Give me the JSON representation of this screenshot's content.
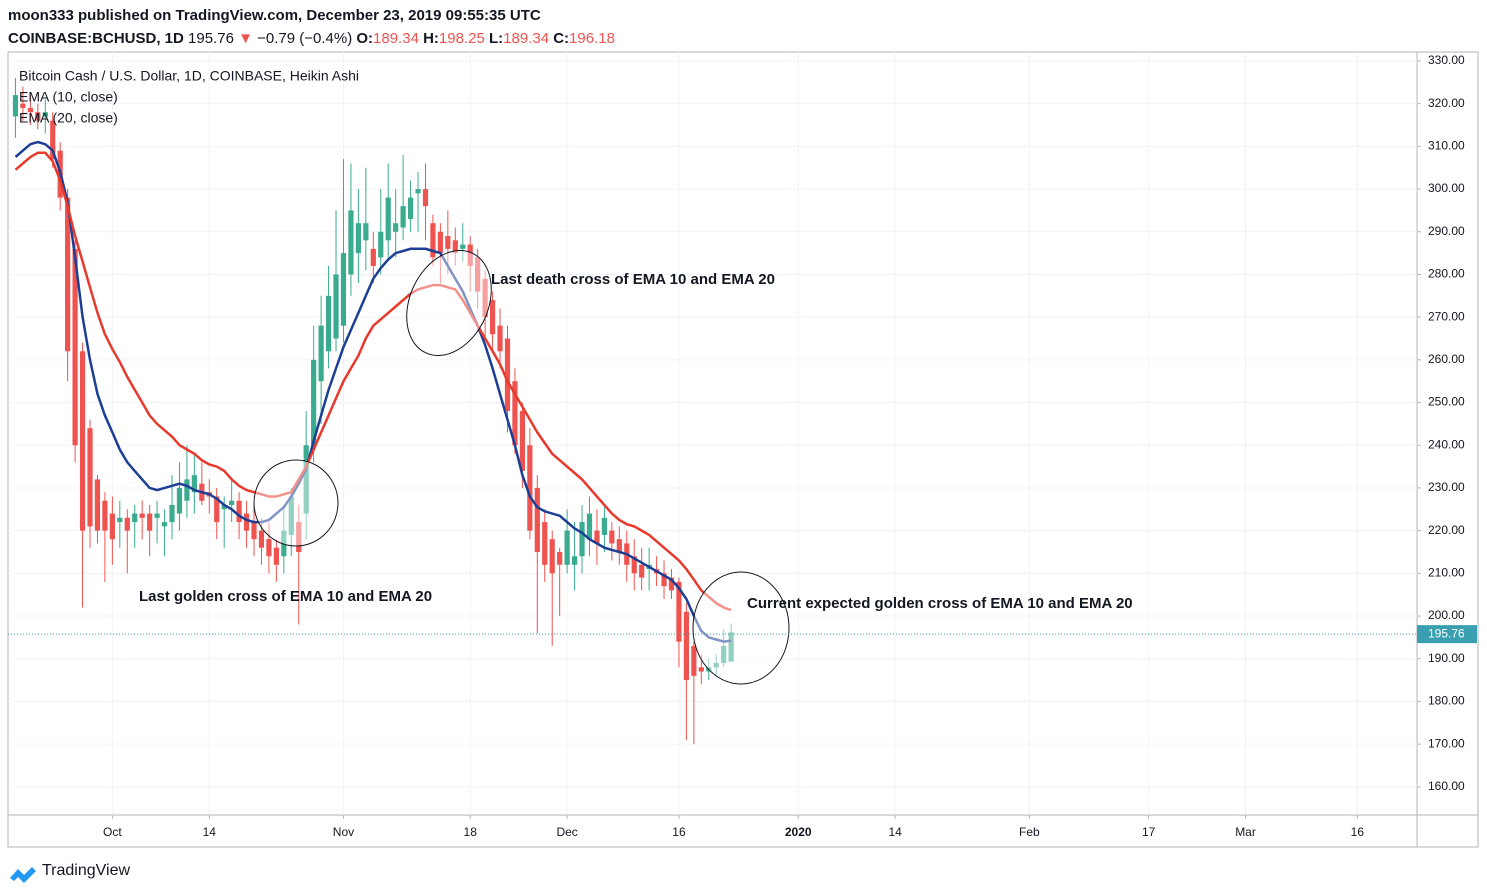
{
  "header": {
    "published": "moon333 published on TradingView.com, December 23, 2019 09:55:35 UTC",
    "symbol": "COINBASE:BCHUSD, 1D",
    "price": 195.76,
    "arrow": "▼",
    "change": "−0.79 (−0.4%)",
    "ohlc_labels": [
      "O:",
      "H:",
      "L:",
      "C:"
    ]
  },
  "footer": {
    "brand": "TradingView"
  },
  "chart_data": {
    "type": "candlestick",
    "title": "Bitcoin Cash / U.S. Dollar, 1D, COINBASE, Heikin Ashi",
    "up_color": "#3aab8f",
    "down_color": "#ef5350",
    "x": [
      "2019-09-18",
      "2019-09-19",
      "2019-09-20",
      "2019-09-21",
      "2019-09-22",
      "2019-09-23",
      "2019-09-24",
      "2019-09-25",
      "2019-09-26",
      "2019-09-27",
      "2019-09-28",
      "2019-09-29",
      "2019-09-30",
      "2019-10-01",
      "2019-10-02",
      "2019-10-03",
      "2019-10-04",
      "2019-10-05",
      "2019-10-06",
      "2019-10-07",
      "2019-10-08",
      "2019-10-09",
      "2019-10-10",
      "2019-10-11",
      "2019-10-12",
      "2019-10-13",
      "2019-10-14",
      "2019-10-15",
      "2019-10-16",
      "2019-10-17",
      "2019-10-18",
      "2019-10-19",
      "2019-10-20",
      "2019-10-21",
      "2019-10-22",
      "2019-10-23",
      "2019-10-24",
      "2019-10-25",
      "2019-10-26",
      "2019-10-27",
      "2019-10-28",
      "2019-10-29",
      "2019-10-30",
      "2019-10-31",
      "2019-11-01",
      "2019-11-02",
      "2019-11-03",
      "2019-11-04",
      "2019-11-05",
      "2019-11-06",
      "2019-11-07",
      "2019-11-08",
      "2019-11-09",
      "2019-11-10",
      "2019-11-11",
      "2019-11-12",
      "2019-11-13",
      "2019-11-14",
      "2019-11-15",
      "2019-11-16",
      "2019-11-17",
      "2019-11-18",
      "2019-11-19",
      "2019-11-20",
      "2019-11-21",
      "2019-11-22",
      "2019-11-23",
      "2019-11-24",
      "2019-11-25",
      "2019-11-26",
      "2019-11-27",
      "2019-11-28",
      "2019-11-29",
      "2019-11-30",
      "2019-12-01",
      "2019-12-02",
      "2019-12-03",
      "2019-12-04",
      "2019-12-05",
      "2019-12-06",
      "2019-12-07",
      "2019-12-08",
      "2019-12-09",
      "2019-12-10",
      "2019-12-11",
      "2019-12-12",
      "2019-12-13",
      "2019-12-14",
      "2019-12-15",
      "2019-12-16",
      "2019-12-17",
      "2019-12-18",
      "2019-12-19",
      "2019-12-20",
      "2019-12-21",
      "2019-12-22",
      "2019-12-23"
    ],
    "ohlc": [
      [
        317,
        326,
        312,
        322
      ],
      [
        320,
        324,
        316,
        319
      ],
      [
        319,
        322,
        315,
        318
      ],
      [
        318,
        320,
        314,
        316
      ],
      [
        317,
        321,
        313,
        318
      ],
      [
        316,
        318,
        305,
        307
      ],
      [
        309,
        311,
        295,
        298
      ],
      [
        298,
        300,
        255,
        262
      ],
      [
        286,
        288,
        236,
        240
      ],
      [
        262,
        264,
        202,
        220
      ],
      [
        244,
        246,
        216,
        221
      ],
      [
        232,
        233,
        217,
        220
      ],
      [
        227,
        229,
        208,
        220
      ],
      [
        224,
        228,
        212,
        218
      ],
      [
        222,
        227,
        216,
        223
      ],
      [
        223,
        225,
        210,
        220
      ],
      [
        222,
        226,
        216,
        224
      ],
      [
        224,
        227,
        218,
        223
      ],
      [
        224,
        226,
        214,
        220
      ],
      [
        223,
        227,
        217,
        224
      ],
      [
        221,
        225,
        214,
        222
      ],
      [
        222,
        233,
        218,
        226
      ],
      [
        224,
        236,
        220,
        230
      ],
      [
        227,
        240,
        223,
        232
      ],
      [
        229,
        238,
        224,
        233
      ],
      [
        231,
        236,
        226,
        227
      ],
      [
        229,
        232,
        224,
        228
      ],
      [
        228,
        230,
        218,
        222
      ],
      [
        225,
        228,
        216,
        226
      ],
      [
        226,
        232,
        222,
        227
      ],
      [
        227,
        229,
        218,
        222
      ],
      [
        224,
        227,
        216,
        220
      ],
      [
        222,
        226,
        214,
        218
      ],
      [
        220,
        223,
        212,
        216
      ],
      [
        218,
        222,
        210,
        214
      ],
      [
        216,
        218,
        208,
        212
      ],
      [
        214,
        226,
        210,
        220
      ],
      [
        219,
        230,
        214,
        228
      ],
      [
        222,
        226,
        198,
        215
      ],
      [
        224,
        248,
        218,
        240
      ],
      [
        240,
        268,
        236,
        260
      ],
      [
        255,
        275,
        245,
        268
      ],
      [
        262,
        282,
        258,
        275
      ],
      [
        265,
        295,
        262,
        280
      ],
      [
        268,
        307,
        264,
        285
      ],
      [
        280,
        306,
        275,
        295
      ],
      [
        285,
        300,
        278,
        292
      ],
      [
        288,
        305,
        281,
        292
      ],
      [
        286,
        290,
        278,
        282
      ],
      [
        284,
        300,
        280,
        290
      ],
      [
        288,
        306,
        284,
        298
      ],
      [
        290,
        300,
        284,
        292
      ],
      [
        291,
        308,
        288,
        296
      ],
      [
        293,
        302,
        290,
        298
      ],
      [
        299,
        304,
        290,
        300
      ],
      [
        300,
        306,
        288,
        296
      ],
      [
        292,
        294,
        282,
        284
      ],
      [
        290,
        292,
        278,
        285
      ],
      [
        289,
        295,
        280,
        286
      ],
      [
        288,
        291,
        282,
        285
      ],
      [
        286,
        292,
        283,
        287
      ],
      [
        287,
        289,
        276,
        282
      ],
      [
        284,
        286,
        272,
        276
      ],
      [
        279,
        281,
        265,
        270
      ],
      [
        274,
        276,
        262,
        266
      ],
      [
        268,
        272,
        258,
        262
      ],
      [
        265,
        268,
        243,
        248
      ],
      [
        255,
        258,
        238,
        240
      ],
      [
        248,
        250,
        230,
        234
      ],
      [
        240,
        244,
        218,
        220
      ],
      [
        230,
        233,
        196,
        215
      ],
      [
        222,
        225,
        208,
        212
      ],
      [
        218,
        220,
        193,
        210
      ],
      [
        215,
        216,
        200,
        212
      ],
      [
        212,
        225,
        210,
        220
      ],
      [
        212,
        222,
        206,
        214
      ],
      [
        214,
        226,
        210,
        222
      ],
      [
        218,
        228,
        214,
        224
      ],
      [
        220,
        225,
        212,
        217
      ],
      [
        219,
        226,
        215,
        223
      ],
      [
        220,
        222,
        213,
        217
      ],
      [
        218,
        221,
        212,
        215
      ],
      [
        217,
        220,
        208,
        212
      ],
      [
        214,
        218,
        206,
        210
      ],
      [
        212,
        216,
        206,
        209
      ],
      [
        211,
        216,
        206,
        212
      ],
      [
        211,
        214,
        207,
        210
      ],
      [
        210,
        213,
        204,
        207
      ],
      [
        209,
        211,
        204,
        206
      ],
      [
        208,
        209,
        188,
        194
      ],
      [
        201,
        203,
        171,
        185
      ],
      [
        193,
        194,
        170,
        186
      ],
      [
        188,
        191,
        184,
        187
      ],
      [
        187,
        190,
        185,
        188
      ],
      [
        188,
        191,
        186,
        189
      ],
      [
        189,
        197,
        188,
        193
      ],
      [
        189.34,
        198.25,
        189.34,
        196.18
      ]
    ],
    "series": [
      {
        "name": "EMA (10, close)",
        "color": "#1c3f95",
        "values": [
          307.5,
          309,
          310.5,
          311,
          310.5,
          309,
          304,
          297,
          284,
          270,
          260,
          252,
          247,
          243,
          239,
          236,
          234,
          232,
          230,
          229.5,
          230,
          230.5,
          231,
          230.5,
          229.5,
          229,
          228.5,
          227.5,
          226,
          225,
          223.5,
          222.5,
          222,
          222,
          222.5,
          224,
          225.5,
          228,
          231,
          234.5,
          241,
          247,
          253,
          258,
          263,
          267,
          271,
          275,
          279,
          281.5,
          283.5,
          285,
          285.5,
          286,
          286,
          286,
          285.5,
          285,
          282,
          279,
          276,
          272,
          268,
          263.5,
          258,
          252,
          246,
          240,
          233,
          228,
          225.5,
          224.5,
          224,
          223.5,
          222,
          220.5,
          219.5,
          218,
          217,
          216,
          215.5,
          215,
          214.5,
          213.5,
          212.5,
          211.5,
          210.5,
          209.5,
          208.5,
          206.5,
          204,
          200,
          196.5,
          195,
          194.5,
          194,
          194.2
        ]
      },
      {
        "name": "EMA (20, close)",
        "color": "#e8392d",
        "values": [
          304.5,
          306,
          307.5,
          308.5,
          308.5,
          306.5,
          302,
          296,
          289,
          283,
          277,
          271,
          266,
          262.5,
          259.5,
          256,
          253,
          250,
          247,
          245,
          243.5,
          242,
          240,
          239,
          238,
          236.5,
          235.5,
          235,
          234,
          232,
          230.5,
          229.5,
          229,
          228.5,
          228,
          228,
          228.5,
          229,
          232,
          235,
          239,
          243,
          247,
          251,
          255,
          258,
          261,
          265,
          268,
          269.5,
          271,
          272.5,
          274,
          275.5,
          276.5,
          277,
          277.5,
          277.5,
          277,
          276.5,
          274,
          271,
          268,
          265,
          262,
          259,
          255,
          252,
          249,
          246,
          243,
          240.5,
          238,
          236.5,
          235,
          233.5,
          232,
          230,
          228,
          226,
          224,
          222.5,
          221.5,
          221,
          220,
          219,
          217.5,
          216,
          214.5,
          213,
          211,
          208.5,
          206,
          204.5,
          203,
          202,
          201.4
        ]
      }
    ],
    "annotations": [
      "Last golden cross of EMA 10 and EMA 20",
      "Last death cross of EMA 10 and EMA 20",
      "Current expected golden cross of EMA 10 and EMA 20"
    ],
    "xlim": [
      "2019-09-17",
      "2020-03-24"
    ],
    "xticks": [
      {
        "value": "2019-10-01",
        "label": "Oct"
      },
      {
        "value": "2019-10-14",
        "label": "14"
      },
      {
        "value": "2019-11-01",
        "label": "Nov"
      },
      {
        "value": "2019-11-18",
        "label": "18"
      },
      {
        "value": "2019-12-01",
        "label": "Dec"
      },
      {
        "value": "2019-12-16",
        "label": "16"
      },
      {
        "value": "2020-01-01",
        "label": "2020"
      },
      {
        "value": "2020-01-14",
        "label": "14"
      },
      {
        "value": "2020-02-01",
        "label": "Feb"
      },
      {
        "value": "2020-02-17",
        "label": "17"
      },
      {
        "value": "2020-03-01",
        "label": "Mar"
      },
      {
        "value": "2020-03-16",
        "label": "16"
      }
    ],
    "ylim": [
      153.4,
      332.1
    ],
    "yticks": [
      {
        "value": 160,
        "label": "160.00"
      },
      {
        "value": 170,
        "label": "170.00"
      },
      {
        "value": 180,
        "label": "180.00"
      },
      {
        "value": 190,
        "label": "190.00"
      },
      {
        "value": 200,
        "label": "200.00"
      },
      {
        "value": 210,
        "label": "210.00"
      },
      {
        "value": 220,
        "label": "220.00"
      },
      {
        "value": 230,
        "label": "230.00"
      },
      {
        "value": 240,
        "label": "240.00"
      },
      {
        "value": 250,
        "label": "250.00"
      },
      {
        "value": 260,
        "label": "260.00"
      },
      {
        "value": 270,
        "label": "270.00"
      },
      {
        "value": 280,
        "label": "280.00"
      },
      {
        "value": 290,
        "label": "290.00"
      },
      {
        "value": 300,
        "label": "300.00"
      },
      {
        "value": 310,
        "label": "310.00"
      },
      {
        "value": 320,
        "label": "320.00"
      },
      {
        "value": 330,
        "label": "330.00"
      }
    ],
    "grid": true
  }
}
